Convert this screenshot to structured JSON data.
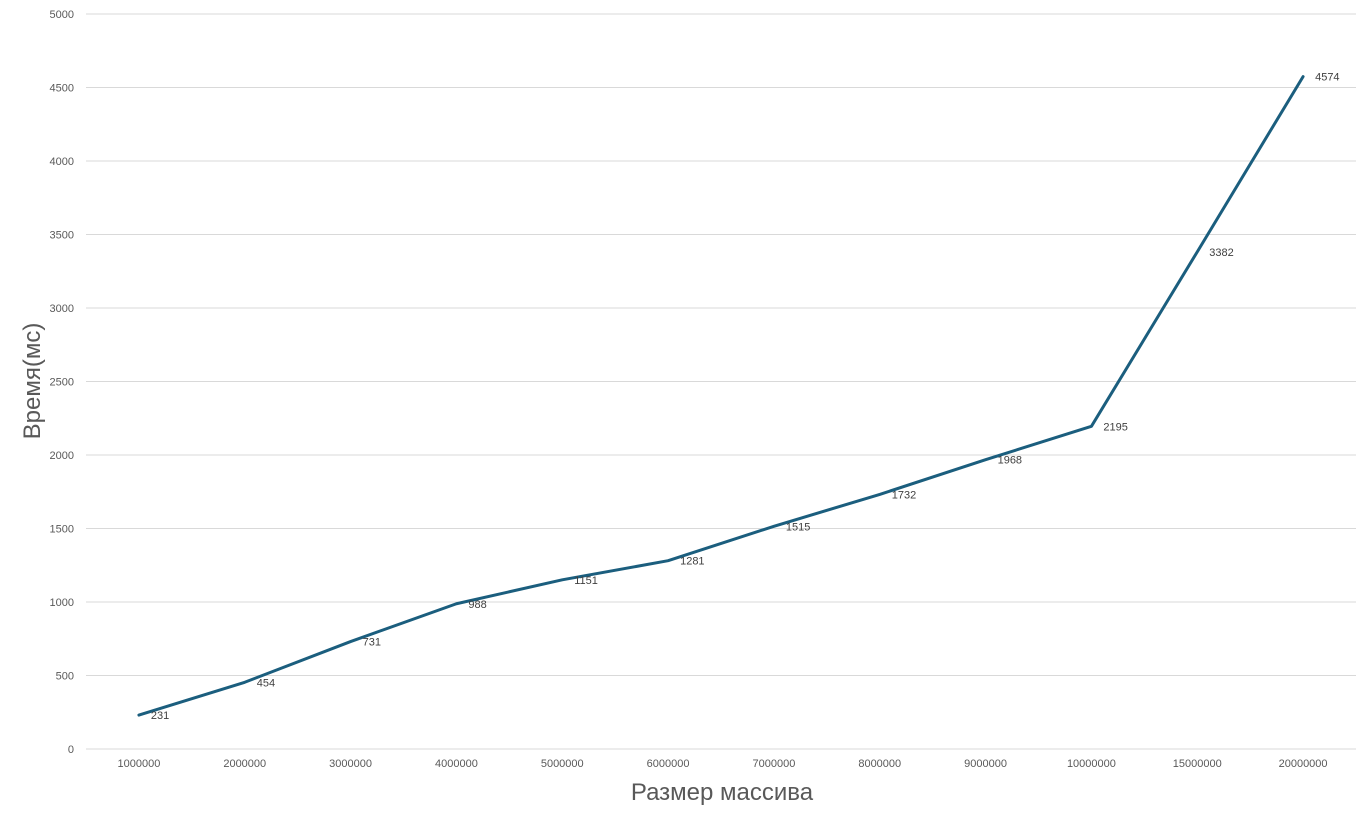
{
  "chart_data": {
    "type": "line",
    "title": "",
    "xlabel": "Размер массива",
    "ylabel": "Время(мс)",
    "categories": [
      "1000000",
      "2000000",
      "3000000",
      "4000000",
      "5000000",
      "6000000",
      "7000000",
      "8000000",
      "9000000",
      "10000000",
      "15000000",
      "20000000"
    ],
    "series": [
      {
        "values": [
          231,
          454,
          731,
          988,
          1151,
          1281,
          1515,
          1732,
          1968,
          2195,
          3382,
          4574
        ],
        "color": "#1b5e7e"
      }
    ],
    "ylim": [
      0,
      5000
    ],
    "yticks": [
      "0",
      "500",
      "1000",
      "1500",
      "2000",
      "2500",
      "3000",
      "3500",
      "4000",
      "4500",
      "5000"
    ],
    "grid": true,
    "legend": "none",
    "data_labels": true
  }
}
